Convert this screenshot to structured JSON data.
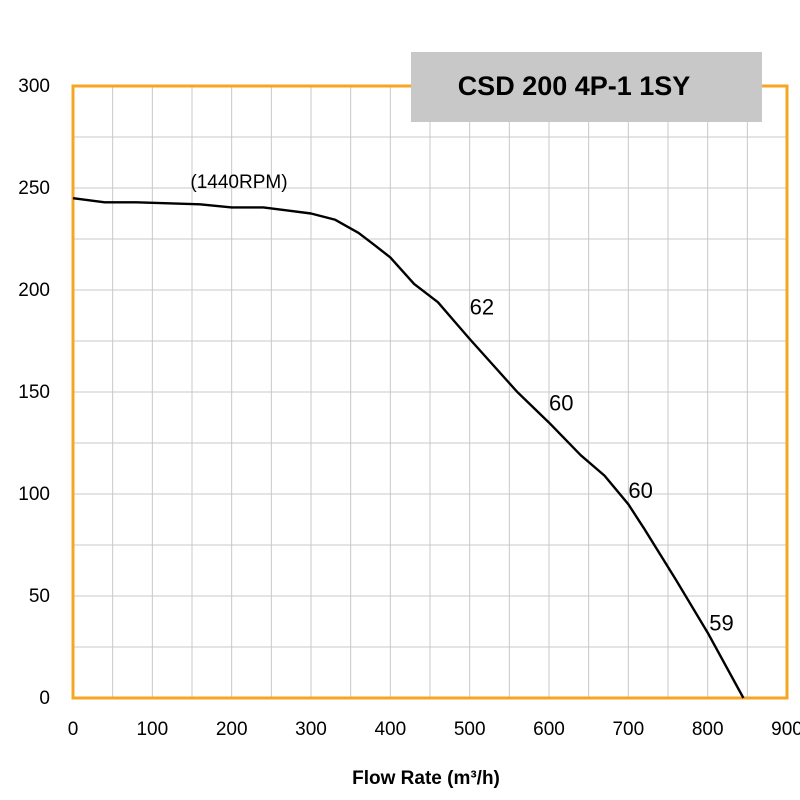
{
  "chart_data": {
    "type": "line",
    "title": "CSD 200 4P-1 1SY",
    "xlabel": "Flow Rate (m³/h)",
    "ylabel": "",
    "xlim": [
      0,
      900
    ],
    "ylim": [
      0,
      300
    ],
    "xticks": [
      0,
      100,
      200,
      300,
      400,
      500,
      600,
      700,
      800,
      900
    ],
    "yticks": [
      0,
      50,
      100,
      150,
      200,
      250,
      300
    ],
    "grid": true,
    "colors": {
      "frame": "#f5a623",
      "grid": "#c8c8c8",
      "line": "#000000",
      "title_box": "#c8c8c8"
    },
    "series": [
      {
        "name": "1440RPM",
        "x": [
          0,
          40,
          80,
          120,
          160,
          200,
          240,
          270,
          300,
          330,
          360,
          380,
          400,
          430,
          460,
          480,
          500,
          530,
          560,
          600,
          640,
          670,
          700,
          720,
          760,
          800,
          845
        ],
        "y": [
          245,
          243,
          243,
          242.5,
          242,
          240.5,
          240.5,
          239,
          237.5,
          234.5,
          228,
          222,
          216,
          203,
          194,
          185,
          176,
          163,
          150,
          135,
          119,
          109,
          95,
          83,
          58,
          32,
          0
        ]
      }
    ],
    "annotations": [
      {
        "text": "(1440RPM)",
        "x": 148,
        "y": 250
      },
      {
        "text": "62",
        "x": 500,
        "y": 188
      },
      {
        "text": "60",
        "x": 600,
        "y": 141
      },
      {
        "text": "60",
        "x": 700,
        "y": 98
      },
      {
        "text": "59",
        "x": 802,
        "y": 33
      }
    ]
  }
}
